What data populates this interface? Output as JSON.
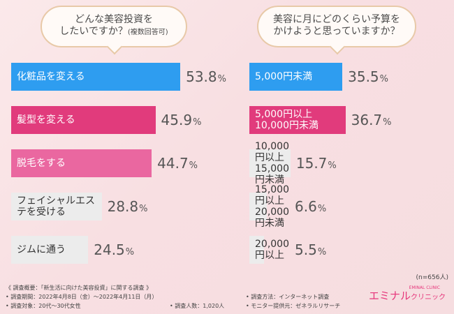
{
  "left_panel": {
    "question_line1": "どんな美容投資を",
    "question_line2": "したいですか？",
    "question_note": "(複数回答可)"
  },
  "right_panel": {
    "question_line1": "美容に月にどのくらい予算を",
    "question_line2": "かけようと思っていますか？",
    "sample_note": "(n=656人)"
  },
  "chart_data": [
    {
      "type": "bar",
      "orientation": "horizontal",
      "title": "どんな美容投資をしたいですか？(複数回答可)",
      "unit": "%",
      "categories": [
        "化粧品を変える",
        "髪型を変える",
        "脱毛をする",
        "フェイシャルエステを受ける",
        "ジムに通う"
      ],
      "values": [
        53.8,
        45.9,
        44.7,
        28.8,
        24.5
      ],
      "colors": [
        "#2e9df0",
        "#e13b7c",
        "#ea67a0",
        "#ececec",
        "#ececec"
      ]
    },
    {
      "type": "bar",
      "orientation": "horizontal",
      "title": "美容に月にどのくらい予算をかけようと思っていますか？",
      "unit": "%",
      "n_label": "(n=656人)",
      "categories": [
        "5,000円未満",
        "5,000円以上\n10,000円未満",
        "10,000円以上15,000円未満",
        "15,000円以上20,000円未満",
        "20,000円以上"
      ],
      "values": [
        35.5,
        36.7,
        15.7,
        6.6,
        5.5
      ],
      "colors": [
        "#2e9df0",
        "#e13b7c",
        "#ececec",
        "#ececec",
        "#ececec"
      ]
    }
  ],
  "footer": {
    "line1": "《 調査概要：「新生活に向けた美容投資」に関する調査 》",
    "line2": "• 調査期間：2022年4月8日（金）～2022年4月11日（月）",
    "line3": "• 調査対象：20代～30代女性",
    "count": "• 調査人数：1,020人",
    "method": "• 調査方法：インターネット調査",
    "provider": "• モニター提供元：ゼネラルリサーチ"
  },
  "logo": {
    "main": "エミナル",
    "small": "クリニック",
    "sub": "EMINAL CLINIC"
  }
}
